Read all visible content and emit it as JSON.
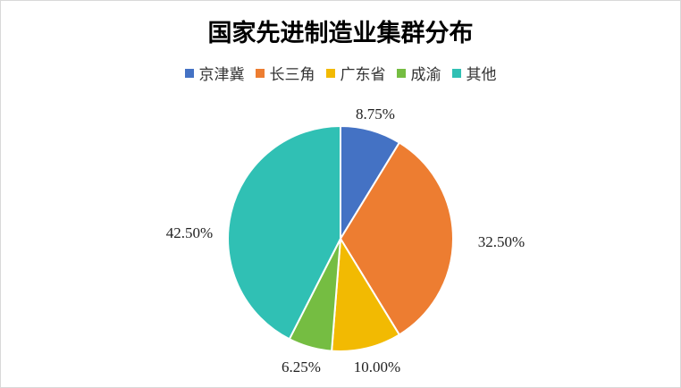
{
  "chart_data": {
    "type": "pie",
    "title": "国家先进制造业集群分布",
    "legend_position": "top",
    "categories": [
      "京津冀",
      "长三角",
      "广东省",
      "成渝",
      "其他"
    ],
    "values": [
      8.75,
      32.5,
      10.0,
      6.25,
      42.5
    ],
    "data_labels": [
      "8.75%",
      "32.50%",
      "10.00%",
      "6.25%",
      "42.50%"
    ],
    "colors": [
      "#4472C4",
      "#ED7D31",
      "#F2BA02",
      "#75BD42",
      "#30C0B4"
    ]
  }
}
